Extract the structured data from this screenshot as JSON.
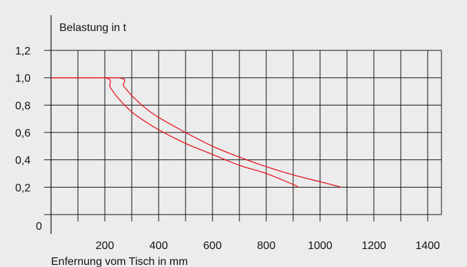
{
  "chart_data": {
    "type": "line",
    "ylabel": "Belastung in t",
    "xlabel": "Enfernung vom Tisch in mm",
    "x_ticks": [
      "200",
      "400",
      "600",
      "800",
      "1000",
      "1200",
      "1400"
    ],
    "y_ticks": [
      "0",
      "0,2",
      "0,4",
      "0,6",
      "0,8",
      "1,0",
      "1,2"
    ],
    "xlim": [
      0,
      1450
    ],
    "ylim": [
      0,
      1.2
    ],
    "grid": true,
    "colors": {
      "curve": "#e8141e",
      "grid": "#111111",
      "background": "#ececec"
    },
    "series": [
      {
        "x": [
          0,
          200,
          220,
          250,
          300,
          350,
          400,
          500,
          600,
          700,
          800,
          900,
          920
        ],
        "y": [
          1.0,
          1.0,
          0.93,
          0.85,
          0.75,
          0.68,
          0.62,
          0.52,
          0.44,
          0.36,
          0.3,
          0.22,
          0.2
        ]
      },
      {
        "x": [
          0,
          250,
          270,
          300,
          350,
          400,
          500,
          600,
          700,
          800,
          900,
          1000,
          1080
        ],
        "y": [
          1.0,
          1.0,
          0.94,
          0.87,
          0.78,
          0.71,
          0.6,
          0.5,
          0.42,
          0.35,
          0.29,
          0.24,
          0.2
        ]
      }
    ]
  }
}
